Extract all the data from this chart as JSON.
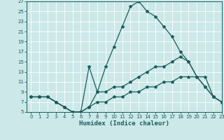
{
  "xlabel": "Humidex (Indice chaleur)",
  "bg_color": "#cce8e8",
  "line_color": "#1a5c5c",
  "grid_color": "#ffffff",
  "ylim": [
    5,
    27
  ],
  "xlim": [
    -0.5,
    23
  ],
  "yticks": [
    5,
    7,
    9,
    11,
    13,
    15,
    17,
    19,
    21,
    23,
    25,
    27
  ],
  "xticks": [
    0,
    1,
    2,
    3,
    4,
    5,
    6,
    7,
    8,
    9,
    10,
    11,
    12,
    13,
    14,
    15,
    16,
    17,
    18,
    19,
    20,
    21,
    22,
    23
  ],
  "line1_x": [
    0,
    1,
    2,
    3,
    4,
    5,
    6,
    7,
    8,
    9,
    10,
    11,
    12,
    13,
    14,
    15,
    16,
    17,
    18,
    19,
    20,
    21,
    22,
    23
  ],
  "line1_y": [
    8,
    8,
    8,
    7,
    6,
    5,
    5,
    6,
    9,
    14,
    18,
    22,
    26,
    27,
    25,
    24,
    22,
    20,
    17,
    15,
    12,
    10,
    8,
    7
  ],
  "line2_x": [
    0,
    1,
    2,
    3,
    4,
    5,
    6,
    7,
    8,
    9,
    10,
    11,
    12,
    13,
    14,
    15,
    16,
    17,
    18,
    19,
    20,
    21,
    22,
    23
  ],
  "line2_y": [
    8,
    8,
    8,
    7,
    6,
    5,
    5,
    14,
    9,
    9,
    10,
    10,
    11,
    12,
    13,
    14,
    14,
    15,
    16,
    15,
    12,
    10,
    8,
    7
  ],
  "line3_x": [
    0,
    1,
    2,
    3,
    4,
    5,
    6,
    7,
    8,
    9,
    10,
    11,
    12,
    13,
    14,
    15,
    16,
    17,
    18,
    19,
    20,
    21,
    22,
    23
  ],
  "line3_y": [
    8,
    8,
    8,
    7,
    6,
    5,
    5,
    6,
    7,
    7,
    8,
    8,
    9,
    9,
    10,
    10,
    11,
    11,
    12,
    12,
    12,
    12,
    8,
    7
  ]
}
